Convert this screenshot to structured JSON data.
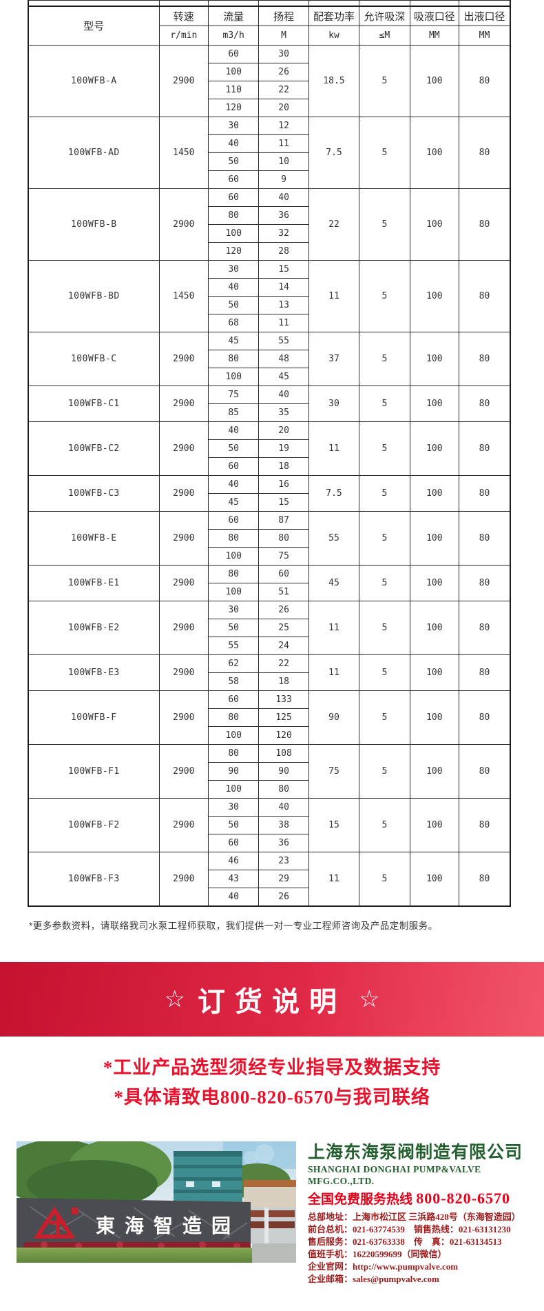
{
  "colors": {
    "banner_start": "#c4122f",
    "banner_mid": "#e02846",
    "banner_end": "#f25668",
    "advisory_red": "#e8122c",
    "company_green": "#235f2f",
    "hotline_red": "#e60019",
    "contact_red": "#9e1c1c",
    "table_border": "#2b2b2b",
    "logo_red": "#c5202c"
  },
  "table": {
    "header": {
      "model": "型号",
      "columns": [
        {
          "label": "转速",
          "unit": "r/min"
        },
        {
          "label": "流量",
          "unit": "m3/h"
        },
        {
          "label": "扬程",
          "unit": "M"
        },
        {
          "label": "配套功率",
          "unit": "kw"
        },
        {
          "label": "允许吸深",
          "unit": "≤M"
        },
        {
          "label": "吸液口径",
          "unit": "MM"
        },
        {
          "label": "出液口径",
          "unit": "MM"
        }
      ]
    },
    "rows": [
      {
        "model": "100WFB-A",
        "speed": "2900",
        "points": [
          [
            "60",
            "30"
          ],
          [
            "100",
            "26"
          ],
          [
            "110",
            "22"
          ],
          [
            "120",
            "20"
          ]
        ],
        "power": "18.5",
        "suction_depth": "5",
        "inlet": "100",
        "outlet": "80"
      },
      {
        "model": "100WFB-AD",
        "speed": "1450",
        "points": [
          [
            "30",
            "12"
          ],
          [
            "40",
            "11"
          ],
          [
            "50",
            "10"
          ],
          [
            "60",
            "9"
          ]
        ],
        "power": "7.5",
        "suction_depth": "5",
        "inlet": "100",
        "outlet": "80"
      },
      {
        "model": "100WFB-B",
        "speed": "2900",
        "points": [
          [
            "60",
            "40"
          ],
          [
            "80",
            "36"
          ],
          [
            "100",
            "32"
          ],
          [
            "120",
            "28"
          ]
        ],
        "power": "22",
        "suction_depth": "5",
        "inlet": "100",
        "outlet": "80"
      },
      {
        "model": "100WFB-BD",
        "speed": "1450",
        "points": [
          [
            "30",
            "15"
          ],
          [
            "40",
            "14"
          ],
          [
            "50",
            "13"
          ],
          [
            "68",
            "11"
          ]
        ],
        "power": "11",
        "suction_depth": "5",
        "inlet": "100",
        "outlet": "80"
      },
      {
        "model": "100WFB-C",
        "speed": "2900",
        "points": [
          [
            "45",
            "55"
          ],
          [
            "80",
            "48"
          ],
          [
            "100",
            "45"
          ]
        ],
        "power": "37",
        "suction_depth": "5",
        "inlet": "100",
        "outlet": "80"
      },
      {
        "model": "100WFB-C1",
        "speed": "2900",
        "points": [
          [
            "75",
            "40"
          ],
          [
            "85",
            "35"
          ]
        ],
        "power": "30",
        "suction_depth": "5",
        "inlet": "100",
        "outlet": "80"
      },
      {
        "model": "100WFB-C2",
        "speed": "2900",
        "points": [
          [
            "40",
            "20"
          ],
          [
            "50",
            "19"
          ],
          [
            "60",
            "18"
          ]
        ],
        "power": "11",
        "suction_depth": "5",
        "inlet": "100",
        "outlet": "80"
      },
      {
        "model": "100WFB-C3",
        "speed": "2900",
        "points": [
          [
            "40",
            "16"
          ],
          [
            "45",
            "15"
          ]
        ],
        "power": "7.5",
        "suction_depth": "5",
        "inlet": "100",
        "outlet": "80"
      },
      {
        "model": "100WFB-E",
        "speed": "2900",
        "points": [
          [
            "60",
            "87"
          ],
          [
            "80",
            "80"
          ],
          [
            "100",
            "75"
          ]
        ],
        "power": "55",
        "suction_depth": "5",
        "inlet": "100",
        "outlet": "80"
      },
      {
        "model": "100WFB-E1",
        "speed": "2900",
        "points": [
          [
            "80",
            "60"
          ],
          [
            "100",
            "51"
          ]
        ],
        "power": "45",
        "suction_depth": "5",
        "inlet": "100",
        "outlet": "80"
      },
      {
        "model": "100WFB-E2",
        "speed": "2900",
        "points": [
          [
            "30",
            "26"
          ],
          [
            "50",
            "25"
          ],
          [
            "55",
            "24"
          ]
        ],
        "power": "11",
        "suction_depth": "5",
        "inlet": "100",
        "outlet": "80"
      },
      {
        "model": "100WFB-E3",
        "speed": "2900",
        "points": [
          [
            "62",
            "22"
          ],
          [
            "58",
            "18"
          ]
        ],
        "power": "11",
        "suction_depth": "5",
        "inlet": "100",
        "outlet": "80"
      },
      {
        "model": "100WFB-F",
        "speed": "2900",
        "points": [
          [
            "60",
            "133"
          ],
          [
            "80",
            "125"
          ],
          [
            "100",
            "120"
          ]
        ],
        "power": "90",
        "suction_depth": "5",
        "inlet": "100",
        "outlet": "80"
      },
      {
        "model": "100WFB-F1",
        "speed": "2900",
        "points": [
          [
            "80",
            "108"
          ],
          [
            "90",
            "90"
          ],
          [
            "100",
            "80"
          ]
        ],
        "power": "75",
        "suction_depth": "5",
        "inlet": "100",
        "outlet": "80"
      },
      {
        "model": "100WFB-F2",
        "speed": "2900",
        "points": [
          [
            "30",
            "40"
          ],
          [
            "50",
            "38"
          ],
          [
            "60",
            "36"
          ]
        ],
        "power": "15",
        "suction_depth": "5",
        "inlet": "100",
        "outlet": "80"
      },
      {
        "model": "100WFB-F3",
        "speed": "2900",
        "points": [
          [
            "46",
            "23"
          ],
          [
            "43",
            "29"
          ],
          [
            "40",
            "26"
          ]
        ],
        "power": "11",
        "suction_depth": "5",
        "inlet": "100",
        "outlet": "80"
      }
    ]
  },
  "footnote": "*更多参数资料，请联络我司水泵工程师获取，我们提供一对一专业工程师咨询及产品定制服务。",
  "order_banner": {
    "star_left": "☆",
    "title": "订货说明",
    "star_right": "☆"
  },
  "advisory": {
    "line1": "*工业产品选型须经专业指导及数据支持",
    "line2": "*具体请致电800-820-6570与我司联络"
  },
  "company": {
    "park_sign": "東海智造园",
    "name_cn": "上海东海泵阀制造有限公司",
    "name_en": "SHANGHAI DONGHAI PUMP&VALVE MFG.CO.,LTD.",
    "hotline_label": "全国免费服务热线",
    "hotline_number": "800-820-6570",
    "contacts": [
      "总部地址：上海市松江区 三浜路428号（东海智造园）",
      "前台总机：021-63774539　销售热线：021-63131230",
      "售后服务：021-63763338　传　真：021-63134513",
      "值班手机：16220599699（同微信）",
      "企业官网：http://www.pumpvalve.com",
      "企业邮箱：sales@pumpvalve.com"
    ]
  }
}
